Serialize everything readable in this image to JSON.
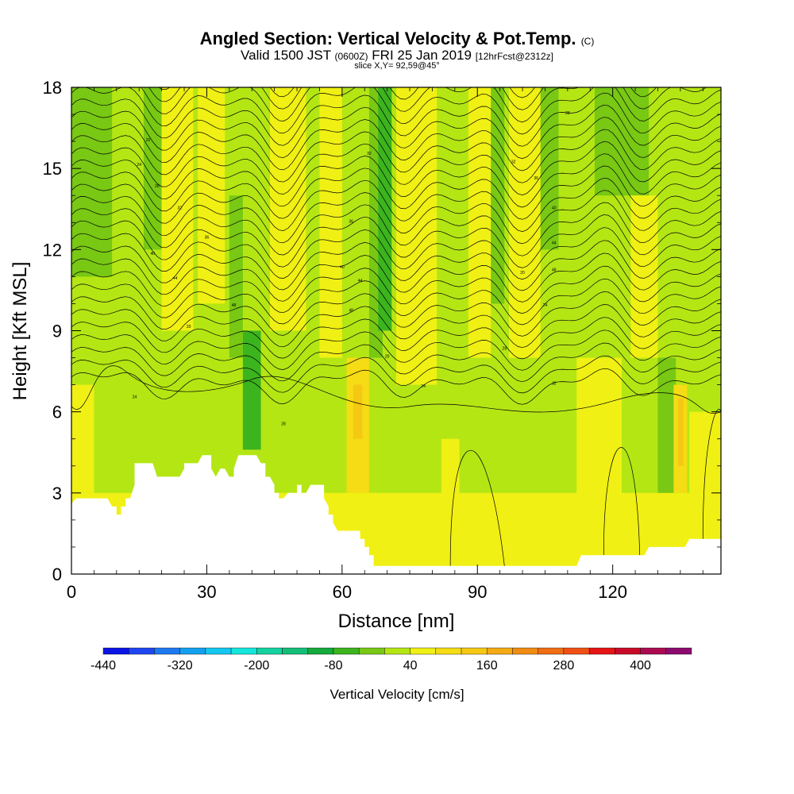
{
  "title": {
    "main": "Angled Section: Vertical Velocity & Pot.Temp.",
    "main_unit": "(C)",
    "valid_a": "Valid 1500 JST",
    "valid_b": "(0600Z)",
    "valid_c": "FRI 25 Jan 2019",
    "valid_d": "[12hrFcst@2312z]",
    "slice": "slice X,Y= 92,59@45°"
  },
  "chart_data": {
    "type": "heatmap",
    "xlabel": "Distance [nm]",
    "ylabel": "Height [Kft MSL]",
    "xlim": [
      0,
      144
    ],
    "ylim": [
      0,
      18
    ],
    "x_ticks": [
      "0",
      "30",
      "60",
      "90",
      "120"
    ],
    "y_ticks": [
      "0",
      "3",
      "6",
      "9",
      "12",
      "15",
      "18"
    ],
    "colorbar": {
      "label": "Vertical Velocity [cm/s]",
      "tick_labels": [
        "-440",
        "-320",
        "-200",
        "-80",
        "40",
        "160",
        "280",
        "400"
      ],
      "levels": [
        -440,
        -400,
        -360,
        -320,
        -280,
        -240,
        -200,
        -160,
        -120,
        -80,
        -40,
        0,
        40,
        80,
        120,
        160,
        200,
        240,
        280,
        320,
        360,
        400,
        440,
        480
      ],
      "colors": [
        "#0a14e6",
        "#1e46f0",
        "#1e78f0",
        "#14a0f0",
        "#14c8f0",
        "#14e6dc",
        "#14d2a0",
        "#14be78",
        "#14aa3c",
        "#3cb41e",
        "#78c814",
        "#b4e614",
        "#f0f014",
        "#f5dc14",
        "#f5c814",
        "#f5aa14",
        "#f08c14",
        "#f06e14",
        "#f05014",
        "#e61414",
        "#c80a28",
        "#aa0a50",
        "#8c0a6e",
        "#6e0a8c"
      ]
    },
    "terrain_kft": [
      [
        0,
        2.6
      ],
      [
        1,
        2.8
      ],
      [
        8,
        2.8
      ],
      [
        9,
        2.5
      ],
      [
        10,
        2.5
      ],
      [
        10,
        2.2
      ],
      [
        11,
        2.2
      ],
      [
        11,
        2.5
      ],
      [
        12,
        2.5
      ],
      [
        12,
        2.8
      ],
      [
        13,
        2.8
      ],
      [
        14,
        3.3
      ],
      [
        14,
        4.1
      ],
      [
        18,
        4.1
      ],
      [
        19,
        3.6
      ],
      [
        20,
        3.6
      ],
      [
        24,
        3.6
      ],
      [
        25,
        3.9
      ],
      [
        25,
        4.1
      ],
      [
        28,
        4.1
      ],
      [
        29,
        4.4
      ],
      [
        31,
        4.4
      ],
      [
        31,
        3.9
      ],
      [
        32,
        3.6
      ],
      [
        33,
        3.9
      ],
      [
        34,
        3.9
      ],
      [
        35,
        3.6
      ],
      [
        36,
        3.6
      ],
      [
        36,
        3.9
      ],
      [
        37,
        4.4
      ],
      [
        41,
        4.4
      ],
      [
        42,
        4.1
      ],
      [
        43,
        4.1
      ],
      [
        43,
        3.6
      ],
      [
        44,
        3.6
      ],
      [
        45,
        3.3
      ],
      [
        45,
        3.0
      ],
      [
        46,
        3.0
      ],
      [
        46,
        2.8
      ],
      [
        47,
        2.8
      ],
      [
        48,
        3.0
      ],
      [
        50,
        3.0
      ],
      [
        50,
        3.3
      ],
      [
        51,
        3.3
      ],
      [
        51,
        3.0
      ],
      [
        52,
        3.0
      ],
      [
        53,
        3.3
      ],
      [
        56,
        3.3
      ],
      [
        56,
        2.8
      ],
      [
        57,
        2.5
      ],
      [
        57,
        2.2
      ],
      [
        58,
        2.2
      ],
      [
        58,
        1.9
      ],
      [
        59,
        1.6
      ],
      [
        64,
        1.6
      ],
      [
        64,
        1.3
      ],
      [
        65,
        1.3
      ],
      [
        65,
        1.0
      ],
      [
        66,
        1.0
      ],
      [
        66,
        0.7
      ],
      [
        67,
        0.7
      ],
      [
        67,
        0.3
      ],
      [
        95,
        0.3
      ],
      [
        112,
        0.3
      ],
      [
        113,
        0.7
      ],
      [
        127,
        0.7
      ],
      [
        128,
        1.0
      ],
      [
        136,
        1.0
      ],
      [
        137,
        1.3
      ],
      [
        144,
        1.3
      ]
    ],
    "theta_labels": [
      "20",
      "24",
      "28",
      "32",
      "36",
      "40",
      "44",
      "48"
    ]
  }
}
